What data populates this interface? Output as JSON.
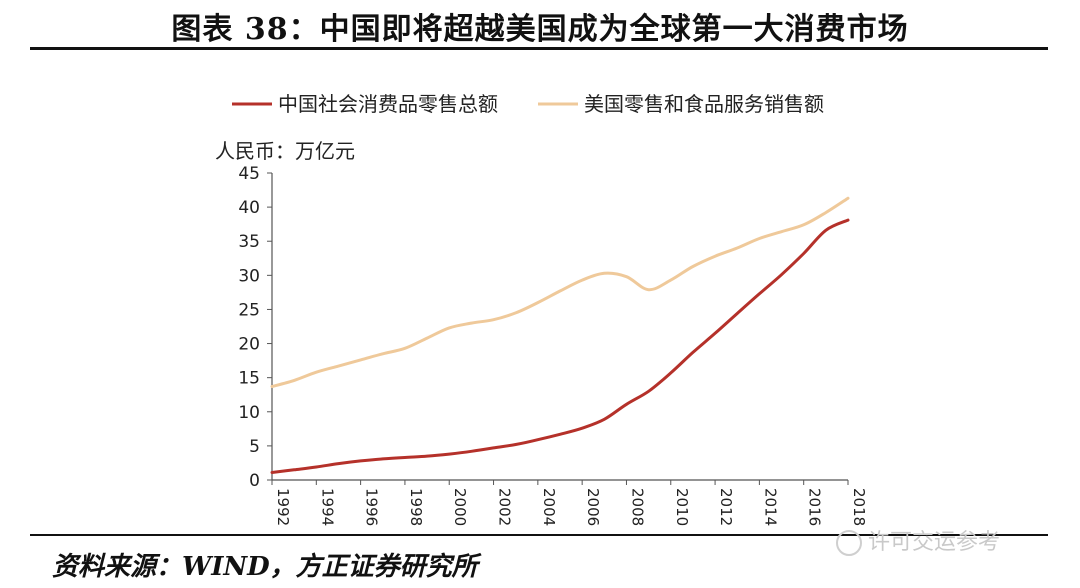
{
  "header": {
    "title": "图表 38：中国即将超越美国成为全球第一大消费市场"
  },
  "footer": {
    "source": "资料来源：WIND，方正证券研究所",
    "watermark": "许可交运参考"
  },
  "colors": {
    "china": "#b5312a",
    "us": "#efc99a",
    "axis": "#555555"
  },
  "chart_data": {
    "type": "line",
    "title": "",
    "ylabel": "人民币：万亿元",
    "xlabel": "",
    "ylim": [
      0,
      45
    ],
    "xlim": [
      1992,
      2018
    ],
    "yticks": [
      0,
      5,
      10,
      15,
      20,
      25,
      30,
      35,
      40,
      45
    ],
    "xtick_labels": [
      "1992",
      "1994",
      "1996",
      "1998",
      "2000",
      "2002",
      "2004",
      "2006",
      "2008",
      "2010",
      "2012",
      "2014",
      "2016",
      "2018"
    ],
    "grid": false,
    "legend_position": "top",
    "series": [
      {
        "name": "中国社会消费品零售总额",
        "color": "#b5312a",
        "x": [
          1992,
          1993,
          1994,
          1995,
          1996,
          1997,
          1998,
          1999,
          2000,
          2001,
          2002,
          2003,
          2004,
          2005,
          2006,
          2007,
          2008,
          2009,
          2010,
          2011,
          2012,
          2013,
          2014,
          2015,
          2016,
          2017,
          2018
        ],
        "y": [
          1.1,
          1.5,
          1.9,
          2.4,
          2.8,
          3.1,
          3.3,
          3.5,
          3.8,
          4.2,
          4.7,
          5.2,
          5.9,
          6.7,
          7.6,
          8.9,
          11.1,
          13.0,
          15.7,
          18.7,
          21.5,
          24.4,
          27.3,
          30.1,
          33.2,
          36.6,
          38.1
        ]
      },
      {
        "name": "美国零售和食品服务销售额",
        "color": "#efc99a",
        "x": [
          1992,
          1993,
          1994,
          1995,
          1996,
          1997,
          1998,
          1999,
          2000,
          2001,
          2002,
          2003,
          2004,
          2005,
          2006,
          2007,
          2008,
          2009,
          2010,
          2011,
          2012,
          2013,
          2014,
          2015,
          2016,
          2017,
          2018
        ],
        "y": [
          13.7,
          14.6,
          15.8,
          16.7,
          17.6,
          18.5,
          19.3,
          20.8,
          22.3,
          23.0,
          23.5,
          24.5,
          26.0,
          27.7,
          29.3,
          30.3,
          29.8,
          27.9,
          29.3,
          31.3,
          32.8,
          34.0,
          35.4,
          36.4,
          37.4,
          39.2,
          41.3
        ]
      }
    ]
  }
}
